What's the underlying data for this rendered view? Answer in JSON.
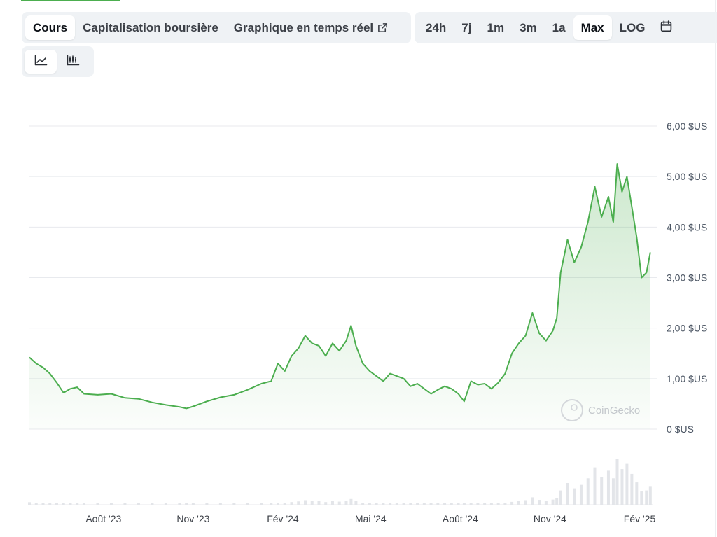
{
  "tabs": [
    {
      "label": "Cours",
      "active": true
    },
    {
      "label": "Capitalisation boursière",
      "active": false
    },
    {
      "label": "Graphique en temps réel",
      "active": false,
      "icon": "external-link-icon"
    }
  ],
  "ranges": [
    {
      "label": "24h",
      "active": false
    },
    {
      "label": "7j",
      "active": false
    },
    {
      "label": "1m",
      "active": false
    },
    {
      "label": "3m",
      "active": false
    },
    {
      "label": "1a",
      "active": false
    },
    {
      "label": "Max",
      "active": true
    },
    {
      "label": "LOG",
      "active": false
    }
  ],
  "range_extra_icon": "calendar-icon",
  "chart_types": [
    {
      "icon": "line-chart-icon",
      "active": true
    },
    {
      "icon": "candlestick-chart-icon",
      "active": false
    }
  ],
  "watermark": "CoinGecko",
  "colors": {
    "line": "#4cae4f",
    "fill": "#4cae4f"
  },
  "chart_data": {
    "type": "area",
    "ylim": [
      0,
      6
    ],
    "y_ticks": [
      0,
      1,
      2,
      3,
      4,
      5,
      6
    ],
    "y_tick_labels": [
      "0 $US",
      "1,00 $US",
      "2,00 $US",
      "3,00 $US",
      "4,00 $US",
      "5,00 $US",
      "6,00 $US"
    ],
    "x_tick_labels": [
      "Août '23",
      "Nov '23",
      "Fév '24",
      "Mai '24",
      "Août '24",
      "Nov '24",
      "Fév '25"
    ],
    "x_tick_dates": [
      "2023-08-01",
      "2023-11-01",
      "2024-02-01",
      "2024-05-01",
      "2024-08-01",
      "2024-11-01",
      "2025-02-01"
    ],
    "x_range": [
      "2023-05-17",
      "2025-02-15"
    ],
    "grid": true,
    "series": [
      {
        "points": [
          [
            "2023-05-17",
            1.42
          ],
          [
            "2023-05-24",
            1.3
          ],
          [
            "2023-05-31",
            1.22
          ],
          [
            "2023-06-07",
            1.1
          ],
          [
            "2023-06-14",
            0.92
          ],
          [
            "2023-06-21",
            0.72
          ],
          [
            "2023-06-28",
            0.8
          ],
          [
            "2023-07-05",
            0.83
          ],
          [
            "2023-07-12",
            0.7
          ],
          [
            "2023-07-26",
            0.68
          ],
          [
            "2023-08-09",
            0.7
          ],
          [
            "2023-08-23",
            0.62
          ],
          [
            "2023-09-06",
            0.6
          ],
          [
            "2023-09-20",
            0.53
          ],
          [
            "2023-10-04",
            0.48
          ],
          [
            "2023-10-18",
            0.44
          ],
          [
            "2023-10-25",
            0.41
          ],
          [
            "2023-11-01",
            0.45
          ],
          [
            "2023-11-15",
            0.55
          ],
          [
            "2023-11-29",
            0.63
          ],
          [
            "2023-12-13",
            0.68
          ],
          [
            "2023-12-27",
            0.78
          ],
          [
            "2024-01-10",
            0.9
          ],
          [
            "2024-01-20",
            0.95
          ],
          [
            "2024-01-27",
            1.3
          ],
          [
            "2024-02-03",
            1.15
          ],
          [
            "2024-02-10",
            1.45
          ],
          [
            "2024-02-17",
            1.6
          ],
          [
            "2024-02-24",
            1.85
          ],
          [
            "2024-03-02",
            1.7
          ],
          [
            "2024-03-09",
            1.65
          ],
          [
            "2024-03-16",
            1.45
          ],
          [
            "2024-03-23",
            1.7
          ],
          [
            "2024-03-30",
            1.55
          ],
          [
            "2024-04-06",
            1.75
          ],
          [
            "2024-04-11",
            2.05
          ],
          [
            "2024-04-16",
            1.65
          ],
          [
            "2024-04-23",
            1.3
          ],
          [
            "2024-04-30",
            1.15
          ],
          [
            "2024-05-07",
            1.05
          ],
          [
            "2024-05-14",
            0.95
          ],
          [
            "2024-05-21",
            1.1
          ],
          [
            "2024-05-28",
            1.05
          ],
          [
            "2024-06-04",
            1.0
          ],
          [
            "2024-06-11",
            0.85
          ],
          [
            "2024-06-18",
            0.9
          ],
          [
            "2024-06-25",
            0.8
          ],
          [
            "2024-07-02",
            0.7
          ],
          [
            "2024-07-09",
            0.78
          ],
          [
            "2024-07-16",
            0.85
          ],
          [
            "2024-07-23",
            0.8
          ],
          [
            "2024-07-30",
            0.7
          ],
          [
            "2024-08-05",
            0.55
          ],
          [
            "2024-08-12",
            0.95
          ],
          [
            "2024-08-19",
            0.88
          ],
          [
            "2024-08-26",
            0.9
          ],
          [
            "2024-09-02",
            0.8
          ],
          [
            "2024-09-09",
            0.92
          ],
          [
            "2024-09-16",
            1.1
          ],
          [
            "2024-09-23",
            1.5
          ],
          [
            "2024-09-30",
            1.7
          ],
          [
            "2024-10-07",
            1.85
          ],
          [
            "2024-10-14",
            2.3
          ],
          [
            "2024-10-21",
            1.9
          ],
          [
            "2024-10-28",
            1.75
          ],
          [
            "2024-11-04",
            1.95
          ],
          [
            "2024-11-08",
            2.2
          ],
          [
            "2024-11-12",
            3.1
          ],
          [
            "2024-11-19",
            3.75
          ],
          [
            "2024-11-26",
            3.3
          ],
          [
            "2024-12-03",
            3.6
          ],
          [
            "2024-12-10",
            4.1
          ],
          [
            "2024-12-17",
            4.8
          ],
          [
            "2024-12-24",
            4.2
          ],
          [
            "2024-12-31",
            4.6
          ],
          [
            "2025-01-05",
            4.1
          ],
          [
            "2025-01-09",
            5.25
          ],
          [
            "2025-01-14",
            4.7
          ],
          [
            "2025-01-19",
            5.0
          ],
          [
            "2025-01-24",
            4.4
          ],
          [
            "2025-01-29",
            3.8
          ],
          [
            "2025-02-03",
            3.0
          ],
          [
            "2025-02-08",
            3.1
          ],
          [
            "2025-02-12",
            3.5
          ]
        ]
      }
    ]
  }
}
